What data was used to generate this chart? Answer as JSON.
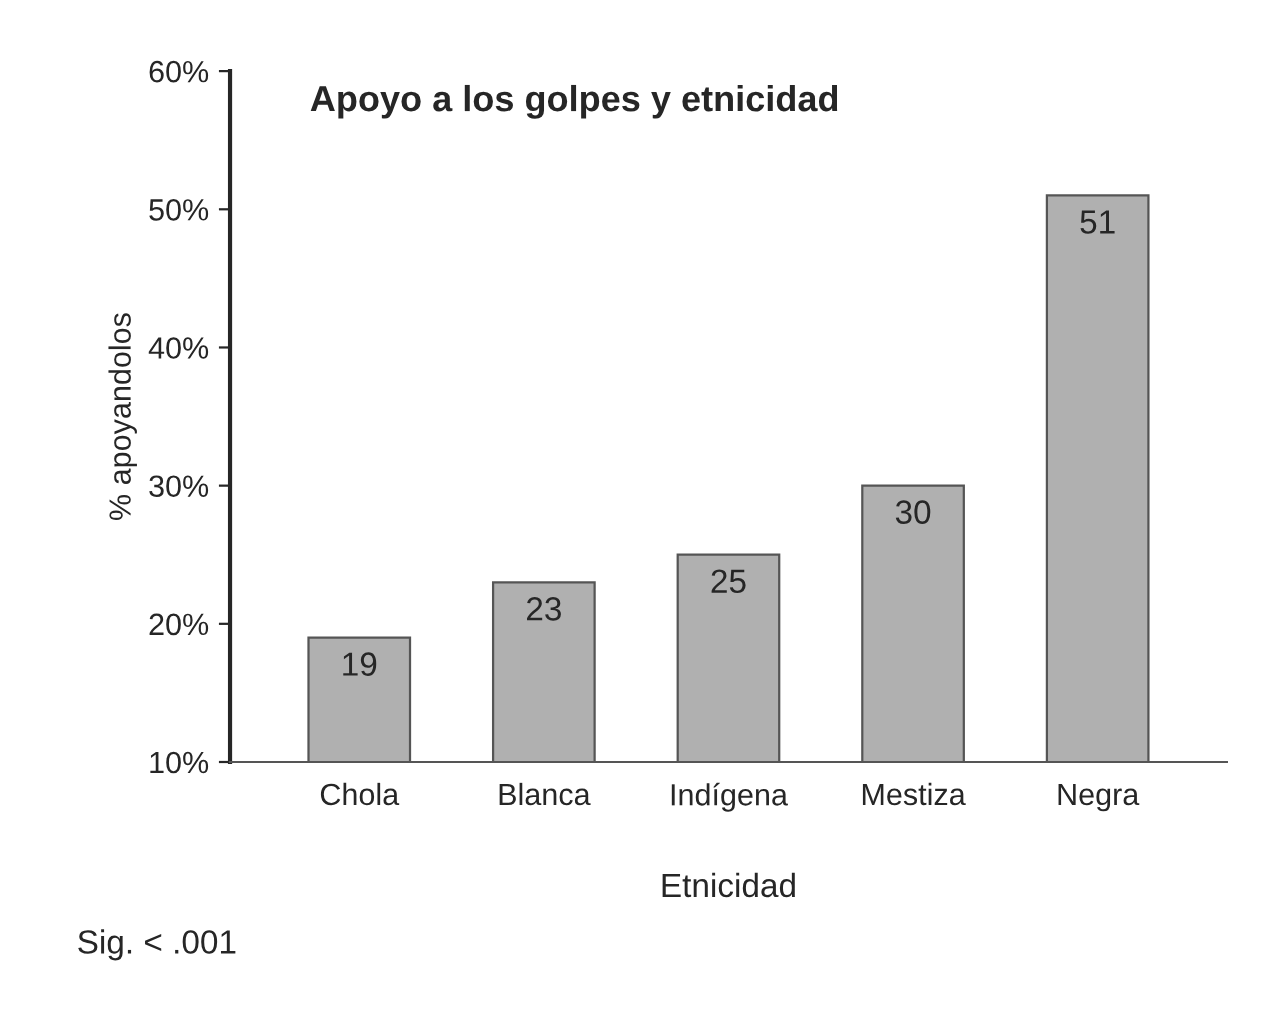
{
  "chart_data": {
    "type": "bar",
    "title": "Apoyo a los golpes y etnicidad",
    "xlabel": "Etnicidad",
    "ylabel": "% apoyandolos",
    "categories": [
      "Chola",
      "Blanca",
      "Indígena",
      "Mestiza",
      "Negra"
    ],
    "values": [
      19,
      23,
      25,
      30,
      51
    ],
    "color": "#b0b0b0",
    "data_labels": true,
    "ylim": [
      10,
      60
    ],
    "yticks": [
      {
        "value": 10,
        "label": "10%"
      },
      {
        "value": 20,
        "label": "20%"
      },
      {
        "value": 30,
        "label": "30%"
      },
      {
        "value": 40,
        "label": "40%"
      },
      {
        "value": 50,
        "label": "50%"
      },
      {
        "value": 60,
        "label": "60%"
      }
    ],
    "grid": false,
    "legend": false,
    "annotations": [
      "Sig. < .001"
    ]
  }
}
